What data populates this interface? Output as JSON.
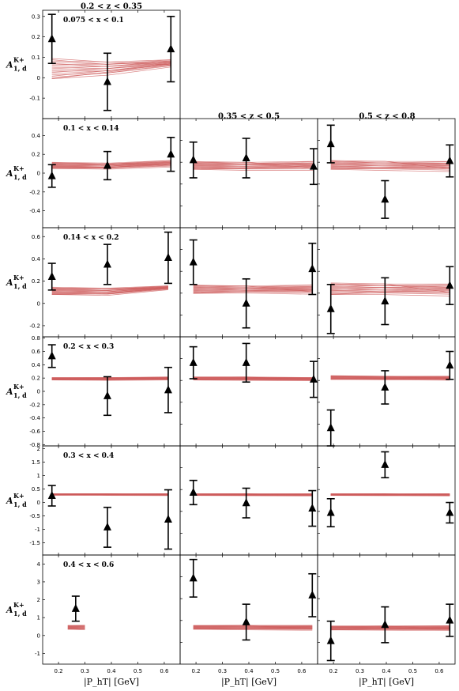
{
  "figure": {
    "col_headers": [
      "0.2 < z < 0.35",
      "0.35 < z < 0.5",
      "0.5 < z < 0.8"
    ],
    "row_labels": [
      "0.075 < x < 0.1",
      "0.1 < x < 0.14",
      "0.14 < x < 0.2",
      "0.2 < x < 0.3",
      "0.3 < x < 0.4",
      "0.4 < x < 0.6"
    ],
    "ylabel_main": "A",
    "ylabel_sub": "1, d",
    "ylabel_sup": "K+",
    "xlabel": "|P_hT| [GeV]",
    "x_ticks": [
      "0.2",
      "0.3",
      "0.4",
      "0.5",
      "0.6"
    ],
    "colors": {
      "band": "#cd5c5c",
      "data": "#000000"
    }
  },
  "chart_data": {
    "type": "scatter",
    "xlim": [
      0.14,
      0.66
    ],
    "grid": false,
    "panels": [
      {
        "row": 0,
        "col": 0,
        "ylim": [
          -0.2,
          0.33
        ],
        "yticks": [
          -0.1,
          0,
          0.1,
          0.2,
          0.3
        ],
        "points": [
          {
            "x": 0.175,
            "y": 0.19,
            "err": 0.12
          },
          {
            "x": 0.385,
            "y": -0.02,
            "err": 0.14
          },
          {
            "x": 0.625,
            "y": 0.14,
            "err": 0.16
          }
        ],
        "band": {
          "x": [
            0.175,
            0.385,
            0.625
          ],
          "lo": [
            -0.005,
            0.02,
            0.06
          ],
          "hi": [
            0.1,
            0.08,
            0.09
          ]
        }
      },
      {
        "row": 1,
        "col": 0,
        "ylim": [
          -0.58,
          0.58
        ],
        "yticks": [
          -0.4,
          -0.2,
          0,
          0.2,
          0.4
        ],
        "points": [
          {
            "x": 0.175,
            "y": -0.03,
            "err": 0.12
          },
          {
            "x": 0.385,
            "y": 0.08,
            "err": 0.15
          },
          {
            "x": 0.625,
            "y": 0.2,
            "err": 0.18
          }
        ],
        "band": {
          "x": [
            0.175,
            0.385,
            0.625
          ],
          "lo": [
            0.05,
            0.05,
            0.08
          ],
          "hi": [
            0.12,
            0.11,
            0.14
          ]
        }
      },
      {
        "row": 1,
        "col": 1,
        "ylim": [
          -0.58,
          0.58
        ],
        "yticks": [],
        "points": [
          {
            "x": 0.19,
            "y": 0.14,
            "err": 0.19
          },
          {
            "x": 0.39,
            "y": 0.16,
            "err": 0.21
          },
          {
            "x": 0.645,
            "y": 0.07,
            "err": 0.19
          }
        ],
        "band": {
          "x": [
            0.19,
            0.39,
            0.645
          ],
          "lo": [
            0.04,
            0.04,
            0.05
          ],
          "hi": [
            0.13,
            0.12,
            0.13
          ]
        }
      },
      {
        "row": 1,
        "col": 2,
        "ylim": [
          -0.58,
          0.58
        ],
        "yticks": [],
        "points": [
          {
            "x": 0.19,
            "y": 0.31,
            "err": 0.2
          },
          {
            "x": 0.395,
            "y": -0.28,
            "err": 0.2
          },
          {
            "x": 0.64,
            "y": 0.13,
            "err": 0.17
          }
        ],
        "band": {
          "x": [
            0.19,
            0.395,
            0.64
          ],
          "lo": [
            0.04,
            0.04,
            0.04
          ],
          "hi": [
            0.14,
            0.13,
            0.13
          ]
        }
      },
      {
        "row": 2,
        "col": 0,
        "ylim": [
          -0.3,
          0.68
        ],
        "yticks": [
          -0.2,
          0,
          0.2,
          0.4,
          0.6
        ],
        "points": [
          {
            "x": 0.175,
            "y": 0.24,
            "err": 0.12
          },
          {
            "x": 0.385,
            "y": 0.35,
            "err": 0.18
          },
          {
            "x": 0.615,
            "y": 0.41,
            "err": 0.23
          }
        ],
        "band": {
          "x": [
            0.175,
            0.385,
            0.615
          ],
          "lo": [
            0.08,
            0.08,
            0.13
          ],
          "hi": [
            0.15,
            0.14,
            0.16
          ]
        }
      },
      {
        "row": 2,
        "col": 1,
        "ylim": [
          -0.3,
          0.68
        ],
        "yticks": [],
        "points": [
          {
            "x": 0.19,
            "y": 0.37,
            "err": 0.2
          },
          {
            "x": 0.39,
            "y": 0.0,
            "err": 0.22
          },
          {
            "x": 0.64,
            "y": 0.31,
            "err": 0.23
          }
        ],
        "band": {
          "x": [
            0.19,
            0.39,
            0.64
          ],
          "lo": [
            0.09,
            0.1,
            0.1
          ],
          "hi": [
            0.17,
            0.16,
            0.17
          ]
        }
      },
      {
        "row": 2,
        "col": 2,
        "ylim": [
          -0.3,
          0.68
        ],
        "yticks": [],
        "points": [
          {
            "x": 0.19,
            "y": -0.05,
            "err": 0.22
          },
          {
            "x": 0.395,
            "y": 0.02,
            "err": 0.21
          },
          {
            "x": 0.64,
            "y": 0.16,
            "err": 0.17
          }
        ],
        "band": {
          "x": [
            0.19,
            0.395,
            0.64
          ],
          "lo": [
            0.08,
            0.09,
            0.09
          ],
          "hi": [
            0.19,
            0.18,
            0.18
          ]
        }
      },
      {
        "row": 3,
        "col": 0,
        "ylim": [
          -0.82,
          0.82
        ],
        "yticks": [
          -0.8,
          -0.6,
          -0.4,
          -0.2,
          0,
          0.2,
          0.4,
          0.6,
          0.8
        ],
        "points": [
          {
            "x": 0.175,
            "y": 0.53,
            "err": 0.17
          },
          {
            "x": 0.385,
            "y": -0.07,
            "err": 0.29
          },
          {
            "x": 0.615,
            "y": 0.02,
            "err": 0.34
          }
        ],
        "band": {
          "x": [
            0.175,
            0.385,
            0.615
          ],
          "lo": [
            0.17,
            0.17,
            0.18
          ],
          "hi": [
            0.21,
            0.21,
            0.22
          ]
        }
      },
      {
        "row": 3,
        "col": 1,
        "ylim": [
          -0.82,
          0.82
        ],
        "yticks": [],
        "points": [
          {
            "x": 0.19,
            "y": 0.43,
            "err": 0.24
          },
          {
            "x": 0.39,
            "y": 0.43,
            "err": 0.29
          },
          {
            "x": 0.645,
            "y": 0.18,
            "err": 0.27
          }
        ],
        "band": {
          "x": [
            0.19,
            0.39,
            0.645
          ],
          "lo": [
            0.17,
            0.17,
            0.17
          ],
          "hi": [
            0.22,
            0.22,
            0.21
          ]
        }
      },
      {
        "row": 3,
        "col": 2,
        "ylim": [
          -0.82,
          0.82
        ],
        "yticks": [],
        "points": [
          {
            "x": 0.19,
            "y": -0.55,
            "err": 0.27
          },
          {
            "x": 0.395,
            "y": 0.06,
            "err": 0.25
          },
          {
            "x": 0.64,
            "y": 0.39,
            "err": 0.21
          }
        ],
        "band": {
          "x": [
            0.19,
            0.395,
            0.64
          ],
          "lo": [
            0.18,
            0.18,
            0.18
          ],
          "hi": [
            0.24,
            0.23,
            0.23
          ]
        }
      },
      {
        "row": 4,
        "col": 0,
        "ylim": [
          -1.95,
          2.1
        ],
        "yticks": [
          -1.5,
          -1.0,
          -0.5,
          0.0,
          0.5,
          1.0,
          1.5,
          2.0
        ],
        "points": [
          {
            "x": 0.175,
            "y": 0.25,
            "err": 0.38
          },
          {
            "x": 0.385,
            "y": -0.92,
            "err": 0.74
          },
          {
            "x": 0.615,
            "y": -0.63,
            "err": 1.1
          }
        ],
        "band": {
          "x": [
            0.175,
            0.385,
            0.615
          ],
          "lo": [
            0.27,
            0.27,
            0.27
          ],
          "hi": [
            0.33,
            0.33,
            0.33
          ]
        }
      },
      {
        "row": 4,
        "col": 1,
        "ylim": [
          -1.95,
          2.1
        ],
        "yticks": [],
        "points": [
          {
            "x": 0.19,
            "y": 0.37,
            "err": 0.45
          },
          {
            "x": 0.39,
            "y": -0.02,
            "err": 0.55
          },
          {
            "x": 0.64,
            "y": -0.22,
            "err": 0.66
          }
        ],
        "band": {
          "x": [
            0.19,
            0.39,
            0.64
          ],
          "lo": [
            0.26,
            0.26,
            0.26
          ],
          "hi": [
            0.33,
            0.33,
            0.33
          ]
        }
      },
      {
        "row": 4,
        "col": 2,
        "ylim": [
          -1.95,
          2.1
        ],
        "yticks": [],
        "points": [
          {
            "x": 0.19,
            "y": -0.38,
            "err": 0.52
          },
          {
            "x": 0.395,
            "y": 1.4,
            "err": 0.48
          },
          {
            "x": 0.64,
            "y": -0.38,
            "err": 0.38
          }
        ],
        "band": {
          "x": [
            0.19,
            0.395,
            0.64
          ],
          "lo": [
            0.26,
            0.26,
            0.26
          ],
          "hi": [
            0.33,
            0.33,
            0.33
          ]
        }
      },
      {
        "row": 5,
        "col": 0,
        "ylim": [
          -1.6,
          4.5
        ],
        "yticks": [
          -1,
          0,
          1,
          2,
          3,
          4
        ],
        "points": [
          {
            "x": 0.265,
            "y": 1.5,
            "err": 0.7
          }
        ],
        "band": {
          "x": [
            0.235,
            0.3
          ],
          "lo": [
            0.35,
            0.35
          ],
          "hi": [
            0.58,
            0.58
          ]
        }
      },
      {
        "row": 5,
        "col": 1,
        "ylim": [
          -1.6,
          4.5
        ],
        "yticks": [],
        "points": [
          {
            "x": 0.19,
            "y": 3.2,
            "err": 1.05
          },
          {
            "x": 0.39,
            "y": 0.75,
            "err": 1.0
          },
          {
            "x": 0.64,
            "y": 2.25,
            "err": 1.2
          }
        ],
        "band": {
          "x": [
            0.19,
            0.39,
            0.64
          ],
          "lo": [
            0.35,
            0.35,
            0.35
          ],
          "hi": [
            0.58,
            0.58,
            0.58
          ]
        }
      },
      {
        "row": 5,
        "col": 2,
        "ylim": [
          -1.6,
          4.5
        ],
        "yticks": [],
        "points": [
          {
            "x": 0.19,
            "y": -0.3,
            "err": 1.1
          },
          {
            "x": 0.395,
            "y": 0.6,
            "err": 1.0
          },
          {
            "x": 0.64,
            "y": 0.85,
            "err": 0.9
          }
        ],
        "band": {
          "x": [
            0.19,
            0.395,
            0.64
          ],
          "lo": [
            0.31,
            0.32,
            0.33
          ],
          "hi": [
            0.55,
            0.55,
            0.56
          ]
        }
      }
    ]
  }
}
